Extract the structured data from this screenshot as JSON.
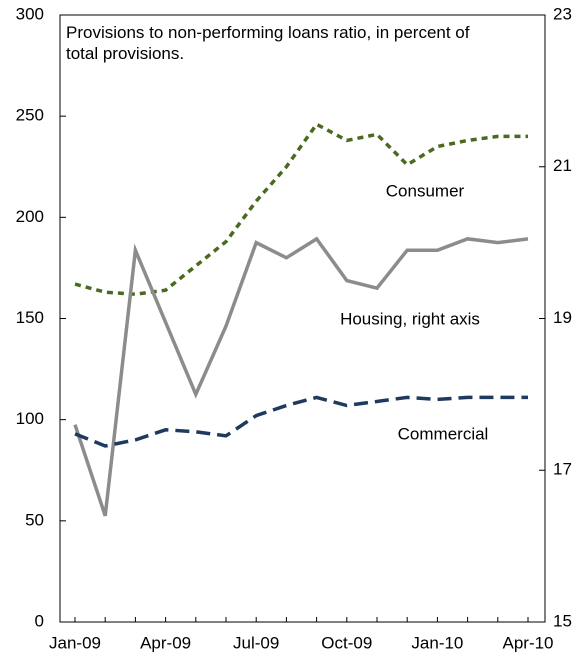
{
  "chart_data": {
    "type": "line",
    "title": "Provisions to non-performing loans ratio, in percent of total provisions.",
    "categories": [
      "Jan-09",
      null,
      null,
      "Apr-09",
      null,
      null,
      "Jul-09",
      null,
      null,
      "Oct-09",
      null,
      null,
      "Jan-10",
      null,
      null,
      "Apr-10"
    ],
    "series": [
      {
        "name": "Consumer",
        "color": "#4a6b1f",
        "dash": "6,5",
        "values": [
          167,
          163,
          162,
          164,
          176,
          188,
          208,
          225,
          246,
          238,
          241,
          226,
          235,
          238,
          240,
          240
        ]
      },
      {
        "name": "Housing, right axis",
        "color": "#8c8c8c",
        "axis": "y2",
        "values": [
          17.6,
          16.4,
          19.9,
          18.95,
          18.0,
          18.9,
          20.0,
          19.8,
          20.05,
          19.5,
          19.4,
          19.9,
          19.9,
          20.05,
          20.0,
          20.05
        ]
      },
      {
        "name": "Commercial",
        "color": "#1f3a5f",
        "dash": "14,7",
        "values": [
          93,
          87,
          90,
          95,
          94,
          92,
          102,
          107,
          111,
          107,
          109,
          111,
          110,
          111,
          111,
          111
        ]
      }
    ],
    "ylim": [
      0,
      300
    ],
    "yticks": [
      0,
      50,
      100,
      150,
      200,
      250,
      300
    ],
    "y2lim": [
      15,
      23
    ],
    "y2ticks": [
      15,
      17,
      19,
      21,
      23
    ]
  }
}
